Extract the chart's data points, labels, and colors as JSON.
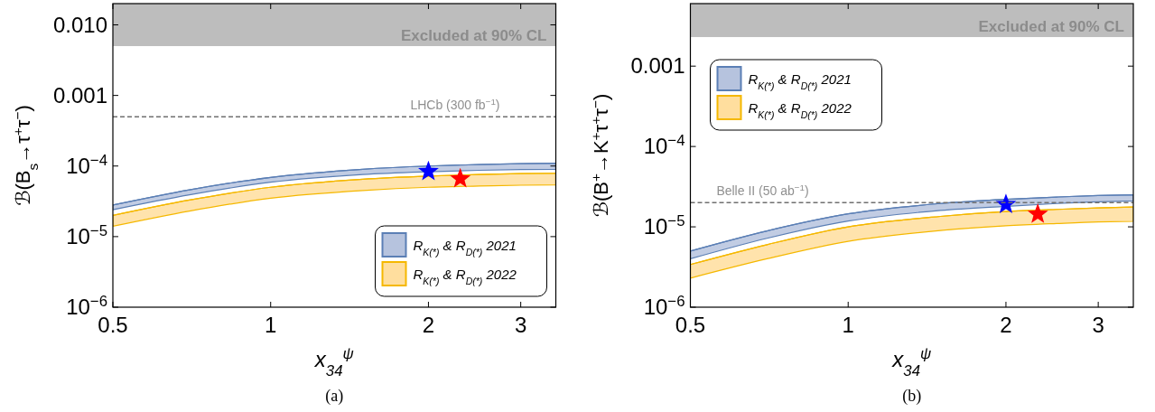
{
  "chart_data": [
    {
      "type": "line",
      "xlabel": "x$_{34}$$^{ψ}$",
      "ylabel": "ℬ(B$_{s}$→τ$^{+}$τ$^{−}$)",
      "log": "xy",
      "grid": false,
      "legend": "bottom right",
      "xlim": [
        0.5,
        3.5
      ],
      "ylim": [
        1e-06,
        0.02
      ],
      "xticks": [
        0.5,
        1,
        2,
        3
      ],
      "yticks": [
        {
          "value": 1e-06,
          "label": "10$^{−6}$"
        },
        {
          "value": 1e-05,
          "label": "10$^{−5}$"
        },
        {
          "value": 0.0001,
          "label": "10$^{−4}$"
        },
        0.001,
        {
          "value": 0.01,
          "label": "0.010"
        }
      ],
      "bands": [
        {
          "axis": "y",
          "from": 0.005,
          "to": 0.02,
          "label": "Excluded at 90% CL",
          "color": "#bdbdbd"
        }
      ],
      "ref_lines": [
        {
          "axis": "y",
          "value": 0.0005,
          "label": "LHCb (300 fb$^{−1}$)",
          "color": "#707070",
          "line_style": "dashed"
        }
      ],
      "annotations": [
        "(a)"
      ],
      "series": [
        {
          "name": "R$_{K(*)}$ & R$_{D(*)}$ 2021",
          "color": "#5b7fb5",
          "x": [
            0.5,
            0.7,
            1,
            1.5,
            2,
            2.5,
            3,
            3.5
          ],
          "values": [
            2.8e-05,
            4.6e-05,
            6.9e-05,
            9e-05,
            0.0001,
            0.000105,
            0.000108,
            0.00011
          ],
          "lower": [
            2.4e-05,
            3.9e-05,
            5.9e-05,
            7.6e-05,
            8.3e-05,
            8.7e-05,
            8.9e-05,
            9e-05
          ],
          "upper": [
            2.8e-05,
            4.6e-05,
            6.9e-05,
            9e-05,
            0.0001,
            0.000105,
            0.000108,
            0.00011
          ]
        },
        {
          "name": "R$_{K(*)}$ & R$_{D(*)}$ 2022",
          "color": "#f5b800",
          "x": [
            0.5,
            0.7,
            1,
            1.5,
            2,
            2.5,
            3,
            3.5
          ],
          "values": [
            2e-05,
            3.3e-05,
            5e-05,
            6.5e-05,
            7.2e-05,
            7.6e-05,
            7.8e-05,
            7.9e-05
          ],
          "lower": [
            1.4e-05,
            2.3e-05,
            3.5e-05,
            4.5e-05,
            5e-05,
            5.2e-05,
            5.35e-05,
            5.4e-05
          ],
          "upper": [
            2e-05,
            3.3e-05,
            5e-05,
            6.5e-05,
            7.2e-05,
            7.6e-05,
            7.8e-05,
            7.9e-05
          ]
        },
        {
          "type": "scatter",
          "marker": "star",
          "color": "#0000ff",
          "x": [
            2
          ],
          "values": [
            8.4e-05
          ]
        },
        {
          "type": "scatter",
          "marker": "star",
          "color": "#ff0000",
          "x": [
            2.3
          ],
          "values": [
            6.6e-05
          ]
        }
      ]
    },
    {
      "type": "line",
      "xlabel": "x$_{34}$$^{ψ}$",
      "ylabel": "ℬ(B$^{+}$→K$^{+}$τ$^{+}$τ$^{−}$)",
      "log": "xy",
      "grid": false,
      "legend": "top left",
      "xlim": [
        0.5,
        3.5
      ],
      "ylim": [
        1e-06,
        0.006
      ],
      "xticks": [
        0.5,
        1,
        2,
        3
      ],
      "yticks": [
        {
          "value": 1e-06,
          "label": "10$^{−6}$"
        },
        {
          "value": 1e-05,
          "label": "10$^{−5}$"
        },
        {
          "value": 0.0001,
          "label": "10$^{−4}$"
        },
        0.001
      ],
      "bands": [
        {
          "axis": "y",
          "from": 0.0023,
          "to": 0.006,
          "label": "Excluded at 90% CL",
          "color": "#bdbdbd"
        }
      ],
      "ref_lines": [
        {
          "axis": "y",
          "value": 2e-05,
          "label": "Belle II (50 ab$^{−1}$)",
          "color": "#707070",
          "line_style": "dashed"
        }
      ],
      "annotations": [
        "(b)"
      ],
      "series": [
        {
          "name": "R$_{K(*)}$ & R$_{D(*)}$ 2021",
          "color": "#5b7fb5",
          "x": [
            0.5,
            0.7,
            1,
            1.5,
            2,
            2.5,
            3,
            3.5
          ],
          "values": [
            5e-06,
            8.9e-06,
            1.45e-05,
            1.95e-05,
            2.2e-05,
            2.35e-05,
            2.45e-05,
            2.5e-05
          ],
          "lower": [
            4e-06,
            7.2e-06,
            1.18e-05,
            1.6e-05,
            1.8e-05,
            1.95e-05,
            2.05e-05,
            2.1e-05
          ],
          "upper": [
            5e-06,
            8.9e-06,
            1.45e-05,
            1.95e-05,
            2.2e-05,
            2.35e-05,
            2.45e-05,
            2.5e-05
          ]
        },
        {
          "name": "R$_{K(*)}$ & R$_{D(*)}$ 2022",
          "color": "#f5b800",
          "x": [
            0.5,
            0.7,
            1,
            1.5,
            2,
            2.5,
            3,
            3.5
          ],
          "values": [
            3.4e-06,
            6e-06,
            1e-05,
            1.35e-05,
            1.55e-05,
            1.65e-05,
            1.72e-05,
            1.77e-05
          ],
          "lower": [
            2.3e-06,
            4e-06,
            6.6e-06,
            9e-06,
            1.03e-05,
            1.1e-05,
            1.15e-05,
            1.17e-05
          ],
          "upper": [
            3.4e-06,
            6e-06,
            1e-05,
            1.35e-05,
            1.55e-05,
            1.65e-05,
            1.72e-05,
            1.77e-05
          ]
        },
        {
          "type": "scatter",
          "marker": "star",
          "color": "#0000ff",
          "x": [
            2
          ],
          "values": [
            1.9e-05
          ]
        },
        {
          "type": "scatter",
          "marker": "star",
          "color": "#ff0000",
          "x": [
            2.3
          ],
          "values": [
            1.44e-05
          ]
        }
      ]
    }
  ]
}
